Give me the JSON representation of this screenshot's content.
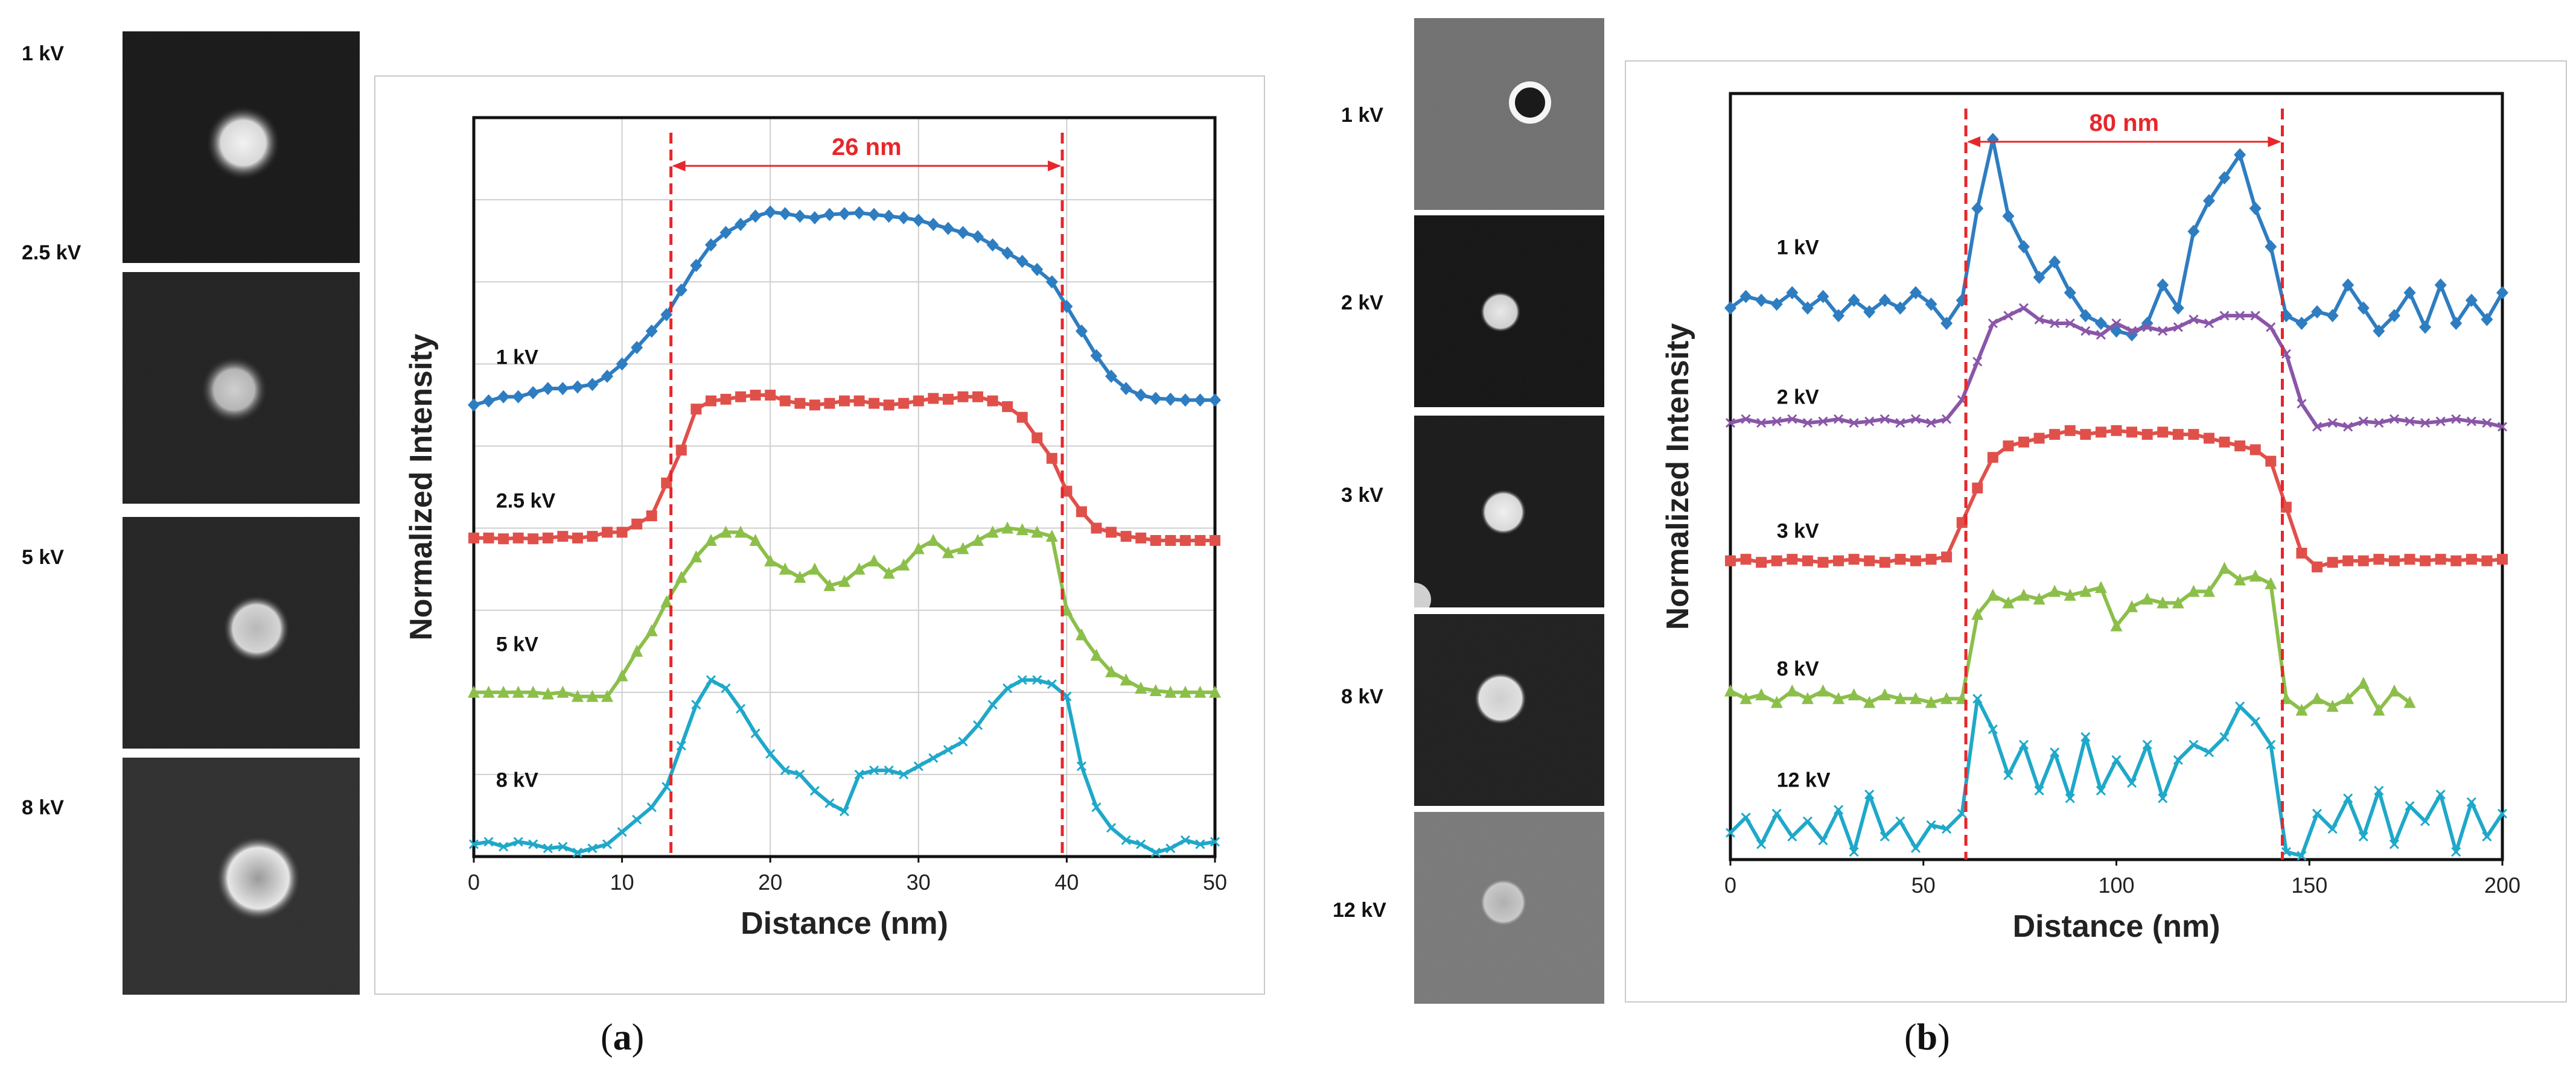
{
  "figure": {
    "panel_a": {
      "caption_letter": "a",
      "image_labels": [
        "1 kV",
        "2.5 kV",
        "5 kV",
        "8 kV"
      ],
      "images": [
        {
          "name": "sem-image-1kv",
          "description_icon": "sem-particle-image",
          "particle": "solid-bright"
        },
        {
          "name": "sem-image-2-5kv",
          "description_icon": "sem-particle-image",
          "particle": "solid-bright"
        },
        {
          "name": "sem-image-5kv",
          "description_icon": "sem-particle-image",
          "particle": "solid-bright"
        },
        {
          "name": "sem-image-8kv",
          "description_icon": "sem-particle-image",
          "particle": "rim-bright"
        }
      ]
    },
    "panel_b": {
      "caption_letter": "b",
      "image_labels": [
        "1 kV",
        "2 kV",
        "3 kV",
        "8 kV",
        "12 kV"
      ],
      "images": [
        {
          "name": "sem-image-1kv",
          "particle": "ring"
        },
        {
          "name": "sem-image-2kv",
          "particle": "solid-bright"
        },
        {
          "name": "sem-image-3kv",
          "particle": "solid-bright"
        },
        {
          "name": "sem-image-8kv",
          "particle": "solid-bright"
        },
        {
          "name": "sem-image-12kv",
          "particle": "solid-dim"
        }
      ]
    },
    "colors": {
      "blue": "#2e7dc1",
      "red": "#e0504a",
      "green": "#8cbf4a",
      "cyan": "#1fa8c9",
      "purple": "#8a56a8",
      "annotation": "#e8262a"
    }
  },
  "chart_data": [
    {
      "id": "a",
      "type": "line",
      "xlabel": "Distance (nm)",
      "ylabel": "Normalized Intensity",
      "xlim": [
        0,
        50
      ],
      "ylim": [
        0,
        9
      ],
      "x_ticks": [
        0,
        10,
        20,
        30,
        40,
        50
      ],
      "grid": true,
      "annotation": {
        "label": "26 nm",
        "x_start": 13.3,
        "x_end": 39.7
      },
      "series": [
        {
          "name": "1 kV",
          "color": "#2e7dc1",
          "marker": "diamond",
          "label_at": [
            1.5,
            6.0
          ],
          "x": [
            0,
            1,
            2,
            3,
            4,
            5,
            6,
            7,
            8,
            9,
            10,
            11,
            12,
            13,
            14,
            15,
            16,
            17,
            18,
            19,
            20,
            21,
            22,
            23,
            24,
            25,
            26,
            27,
            28,
            29,
            30,
            31,
            32,
            33,
            34,
            35,
            36,
            37,
            38,
            39,
            40,
            41,
            42,
            43,
            44,
            45,
            46,
            47,
            48,
            49,
            50
          ],
          "values": [
            5.5,
            5.55,
            5.6,
            5.6,
            5.65,
            5.7,
            5.7,
            5.72,
            5.75,
            5.85,
            6.0,
            6.2,
            6.4,
            6.6,
            6.9,
            7.2,
            7.45,
            7.6,
            7.7,
            7.8,
            7.85,
            7.83,
            7.8,
            7.78,
            7.82,
            7.83,
            7.84,
            7.82,
            7.8,
            7.78,
            7.75,
            7.7,
            7.65,
            7.6,
            7.55,
            7.45,
            7.35,
            7.25,
            7.15,
            7.0,
            6.7,
            6.4,
            6.1,
            5.85,
            5.7,
            5.62,
            5.58,
            5.57,
            5.56,
            5.56,
            5.56
          ]
        },
        {
          "name": "2.5 kV",
          "color": "#e0504a",
          "marker": "square",
          "label_at": [
            1.5,
            4.25
          ],
          "x": [
            0,
            1,
            2,
            3,
            4,
            5,
            6,
            7,
            8,
            9,
            10,
            11,
            12,
            13,
            14,
            15,
            16,
            17,
            18,
            19,
            20,
            21,
            22,
            23,
            24,
            25,
            26,
            27,
            28,
            29,
            30,
            31,
            32,
            33,
            34,
            35,
            36,
            37,
            38,
            39,
            40,
            41,
            42,
            43,
            44,
            45,
            46,
            47,
            48,
            49,
            50
          ],
          "values": [
            3.88,
            3.88,
            3.87,
            3.88,
            3.87,
            3.88,
            3.9,
            3.88,
            3.9,
            3.95,
            3.95,
            4.05,
            4.15,
            4.55,
            4.95,
            5.45,
            5.55,
            5.57,
            5.6,
            5.62,
            5.62,
            5.55,
            5.52,
            5.5,
            5.52,
            5.55,
            5.55,
            5.52,
            5.5,
            5.52,
            5.55,
            5.58,
            5.57,
            5.6,
            5.6,
            5.55,
            5.48,
            5.35,
            5.1,
            4.85,
            4.45,
            4.2,
            4.0,
            3.95,
            3.9,
            3.88,
            3.85,
            3.85,
            3.85,
            3.85,
            3.85
          ]
        },
        {
          "name": "5 kV",
          "color": "#8cbf4a",
          "marker": "triangle",
          "label_at": [
            1.5,
            2.5
          ],
          "x": [
            0,
            1,
            2,
            3,
            4,
            5,
            6,
            7,
            8,
            9,
            10,
            11,
            12,
            13,
            14,
            15,
            16,
            17,
            18,
            19,
            20,
            21,
            22,
            23,
            24,
            25,
            26,
            27,
            28,
            29,
            30,
            31,
            32,
            33,
            34,
            35,
            36,
            37,
            38,
            39,
            40,
            41,
            42,
            43,
            44,
            45,
            46,
            47,
            48,
            49,
            50
          ],
          "values": [
            2.0,
            2.0,
            2.0,
            2.0,
            2.0,
            1.98,
            2.0,
            1.95,
            1.95,
            1.95,
            2.2,
            2.5,
            2.75,
            3.1,
            3.4,
            3.65,
            3.85,
            3.95,
            3.95,
            3.85,
            3.6,
            3.5,
            3.4,
            3.5,
            3.3,
            3.35,
            3.5,
            3.6,
            3.45,
            3.55,
            3.75,
            3.85,
            3.7,
            3.75,
            3.85,
            3.95,
            4.0,
            3.98,
            3.95,
            3.9,
            3.0,
            2.7,
            2.45,
            2.25,
            2.15,
            2.05,
            2.02,
            2.0,
            2.0,
            2.0,
            2.0
          ]
        },
        {
          "name": "8 kV",
          "color": "#1fa8c9",
          "marker": "x",
          "label_at": [
            1.5,
            0.85
          ],
          "x": [
            0,
            1,
            2,
            3,
            4,
            5,
            6,
            7,
            8,
            9,
            10,
            11,
            12,
            13,
            14,
            15,
            16,
            17,
            18,
            19,
            20,
            21,
            22,
            23,
            24,
            25,
            26,
            27,
            28,
            29,
            30,
            31,
            32,
            33,
            34,
            35,
            36,
            37,
            38,
            39,
            40,
            41,
            42,
            43,
            44,
            45,
            46,
            47,
            48,
            49,
            50
          ],
          "values": [
            0.15,
            0.18,
            0.12,
            0.18,
            0.15,
            0.1,
            0.12,
            0.05,
            0.1,
            0.15,
            0.3,
            0.45,
            0.6,
            0.85,
            1.35,
            1.85,
            2.15,
            2.05,
            1.8,
            1.5,
            1.25,
            1.05,
            1.0,
            0.8,
            0.65,
            0.55,
            1.0,
            1.05,
            1.05,
            1.0,
            1.1,
            1.2,
            1.3,
            1.4,
            1.6,
            1.85,
            2.05,
            2.15,
            2.15,
            2.1,
            1.95,
            1.1,
            0.6,
            0.35,
            0.2,
            0.15,
            0.05,
            0.1,
            0.2,
            0.15,
            0.18
          ]
        }
      ]
    },
    {
      "id": "b",
      "type": "line",
      "xlabel": "Distance (nm)",
      "ylabel": "Normalized Intensity",
      "xlim": [
        0,
        200
      ],
      "ylim": [
        0,
        10
      ],
      "x_ticks": [
        0,
        50,
        100,
        150,
        200
      ],
      "grid": false,
      "annotation": {
        "label": "80 nm",
        "x_start": 61,
        "x_end": 143
      },
      "series": [
        {
          "name": "1 kV",
          "color": "#2e7dc1",
          "marker": "diamond",
          "label_at": [
            12,
            7.9
          ],
          "x": [
            0,
            4,
            8,
            12,
            16,
            20,
            24,
            28,
            32,
            36,
            40,
            44,
            48,
            52,
            56,
            60,
            64,
            68,
            72,
            76,
            80,
            84,
            88,
            92,
            96,
            100,
            104,
            108,
            112,
            116,
            120,
            124,
            128,
            132,
            136,
            140,
            144,
            148,
            152,
            156,
            160,
            164,
            168,
            172,
            176,
            180,
            184,
            188,
            192,
            196,
            200
          ],
          "values": [
            7.2,
            7.35,
            7.3,
            7.25,
            7.4,
            7.2,
            7.35,
            7.1,
            7.3,
            7.15,
            7.3,
            7.2,
            7.4,
            7.25,
            7.0,
            7.3,
            8.5,
            9.4,
            8.4,
            8.0,
            7.6,
            7.8,
            7.4,
            7.1,
            7.0,
            6.9,
            6.85,
            7.0,
            7.5,
            7.2,
            8.2,
            8.6,
            8.9,
            9.2,
            8.5,
            8.0,
            7.1,
            7.0,
            7.15,
            7.1,
            7.5,
            7.2,
            6.9,
            7.1,
            7.4,
            6.95,
            7.5,
            7.0,
            7.3,
            7.05,
            7.4
          ]
        },
        {
          "name": "2 kV",
          "color": "#8a56a8",
          "marker": "x",
          "label_at": [
            12,
            5.95
          ],
          "x": [
            0,
            4,
            8,
            12,
            16,
            20,
            24,
            28,
            32,
            36,
            40,
            44,
            48,
            52,
            56,
            60,
            64,
            68,
            72,
            76,
            80,
            84,
            88,
            92,
            96,
            100,
            104,
            108,
            112,
            116,
            120,
            124,
            128,
            132,
            136,
            140,
            144,
            148,
            152,
            156,
            160,
            164,
            168,
            172,
            176,
            180,
            184,
            188,
            192,
            196,
            200
          ],
          "values": [
            5.7,
            5.75,
            5.7,
            5.72,
            5.75,
            5.7,
            5.72,
            5.75,
            5.7,
            5.72,
            5.75,
            5.7,
            5.75,
            5.7,
            5.75,
            6.0,
            6.5,
            7.0,
            7.1,
            7.2,
            7.05,
            7.0,
            7.0,
            6.9,
            6.85,
            7.0,
            6.9,
            6.95,
            6.9,
            6.95,
            7.05,
            7.0,
            7.1,
            7.1,
            7.1,
            6.95,
            6.6,
            5.95,
            5.65,
            5.7,
            5.65,
            5.72,
            5.7,
            5.75,
            5.72,
            5.7,
            5.72,
            5.75,
            5.72,
            5.7,
            5.65
          ]
        },
        {
          "name": "3 kV",
          "color": "#e0504a",
          "marker": "square",
          "label_at": [
            12,
            4.2
          ],
          "x": [
            0,
            4,
            8,
            12,
            16,
            20,
            24,
            28,
            32,
            36,
            40,
            44,
            48,
            52,
            56,
            60,
            64,
            68,
            72,
            76,
            80,
            84,
            88,
            92,
            96,
            100,
            104,
            108,
            112,
            116,
            120,
            124,
            128,
            132,
            136,
            140,
            144,
            148,
            152,
            156,
            160,
            164,
            168,
            172,
            176,
            180,
            184,
            188,
            192,
            196,
            200
          ],
          "values": [
            3.9,
            3.92,
            3.88,
            3.9,
            3.92,
            3.9,
            3.88,
            3.9,
            3.92,
            3.9,
            3.88,
            3.92,
            3.9,
            3.92,
            3.95,
            4.4,
            4.85,
            5.25,
            5.4,
            5.45,
            5.5,
            5.55,
            5.6,
            5.55,
            5.58,
            5.6,
            5.58,
            5.55,
            5.58,
            5.55,
            5.55,
            5.5,
            5.45,
            5.4,
            5.35,
            5.2,
            4.6,
            4.0,
            3.82,
            3.88,
            3.9,
            3.9,
            3.92,
            3.9,
            3.92,
            3.9,
            3.92,
            3.9,
            3.92,
            3.9,
            3.92
          ]
        },
        {
          "name": "8 kV",
          "color": "#8cbf4a",
          "marker": "triangle",
          "label_at": [
            12,
            2.4
          ],
          "x": [
            0,
            4,
            8,
            12,
            16,
            20,
            24,
            28,
            32,
            36,
            40,
            44,
            48,
            52,
            56,
            60,
            64,
            68,
            72,
            76,
            80,
            84,
            88,
            92,
            96,
            100,
            104,
            108,
            112,
            116,
            120,
            124,
            128,
            132,
            136,
            140,
            144,
            148,
            152,
            156,
            160,
            164,
            168,
            172,
            176
          ],
          "values": [
            2.2,
            2.1,
            2.15,
            2.05,
            2.2,
            2.1,
            2.2,
            2.1,
            2.15,
            2.05,
            2.15,
            2.1,
            2.1,
            2.05,
            2.1,
            2.1,
            3.2,
            3.45,
            3.35,
            3.45,
            3.4,
            3.5,
            3.45,
            3.5,
            3.55,
            3.05,
            3.3,
            3.4,
            3.35,
            3.35,
            3.5,
            3.5,
            3.8,
            3.65,
            3.7,
            3.6,
            2.1,
            1.95,
            2.1,
            2.0,
            2.1,
            2.3,
            1.95,
            2.2,
            2.05
          ]
        },
        {
          "name": "12 kV",
          "color": "#1fa8c9",
          "marker": "x",
          "label_at": [
            12,
            0.95
          ],
          "x": [
            0,
            4,
            8,
            12,
            16,
            20,
            24,
            28,
            32,
            36,
            40,
            44,
            48,
            52,
            56,
            60,
            64,
            68,
            72,
            76,
            80,
            84,
            88,
            92,
            96,
            100,
            104,
            108,
            112,
            116,
            120,
            124,
            128,
            132,
            136,
            140,
            144,
            148,
            152,
            156,
            160,
            164,
            168,
            172,
            176,
            180,
            184,
            188,
            192,
            196,
            200
          ],
          "values": [
            0.35,
            0.55,
            0.2,
            0.6,
            0.3,
            0.5,
            0.25,
            0.65,
            0.1,
            0.85,
            0.3,
            0.5,
            0.15,
            0.45,
            0.4,
            0.6,
            2.1,
            1.7,
            1.1,
            1.5,
            0.9,
            1.4,
            0.8,
            1.6,
            0.9,
            1.3,
            1.0,
            1.5,
            0.8,
            1.3,
            1.5,
            1.4,
            1.6,
            2.0,
            1.8,
            1.5,
            0.1,
            0.05,
            0.6,
            0.4,
            0.8,
            0.3,
            0.9,
            0.2,
            0.7,
            0.5,
            0.85,
            0.1,
            0.75,
            0.3,
            0.6
          ]
        }
      ]
    }
  ]
}
